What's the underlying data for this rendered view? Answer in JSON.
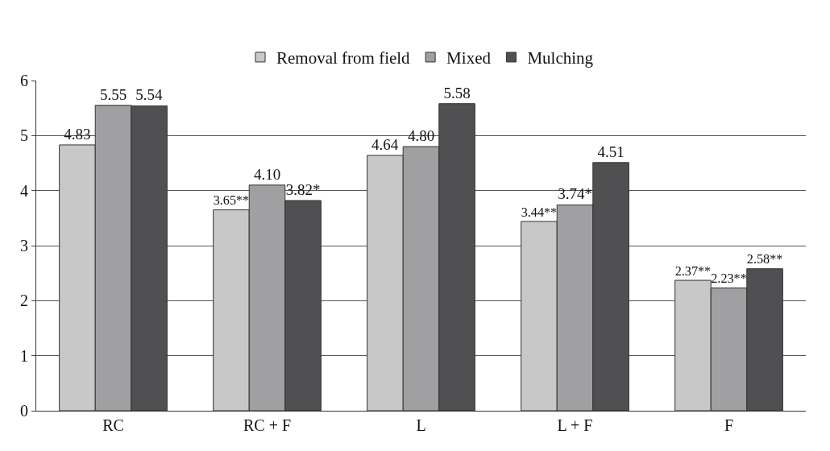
{
  "chart_data": {
    "type": "bar",
    "categories": [
      "RC",
      "RC + F",
      "L",
      "L + F",
      "F"
    ],
    "series": [
      {
        "name": "Removal from field",
        "color": "#c8c8c8",
        "values": [
          4.83,
          3.65,
          4.64,
          3.44,
          2.37
        ],
        "value_labels": [
          "4.83",
          "3.65**",
          "4.64",
          "3.44**",
          "2.37**"
        ]
      },
      {
        "name": "Mixed",
        "color": "#a0a0a2",
        "values": [
          5.55,
          4.1,
          4.8,
          3.74,
          2.23
        ],
        "value_labels": [
          "5.55",
          "4.10",
          "4.80",
          "3.74*",
          "2.23**"
        ]
      },
      {
        "name": "Mulching",
        "color": "#505052",
        "values": [
          5.54,
          3.82,
          5.58,
          4.51,
          2.58
        ],
        "value_labels": [
          "5.54",
          "3.82*",
          "5.58",
          "4.51",
          "2.58**"
        ]
      }
    ],
    "ylim": [
      0,
      6
    ],
    "yticks": [
      0,
      1,
      2,
      3,
      4,
      5,
      6
    ],
    "grid": "y",
    "legend": "top"
  }
}
